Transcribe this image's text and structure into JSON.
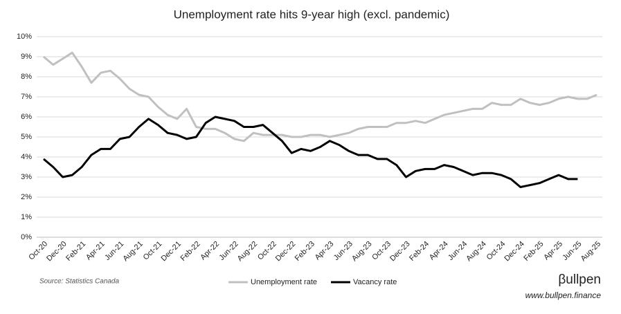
{
  "chart_data": {
    "type": "line",
    "title": "Unemployment rate hits 9-year high (excl. pandemic)",
    "source": "Source: Statistics Canada",
    "brand": "βullpen",
    "website": "www.bullpen.finance",
    "categories": [
      "Oct-20",
      null,
      "Dec-20",
      null,
      "Feb-21",
      null,
      "Apr-21",
      null,
      "Jun-21",
      null,
      "Aug-21",
      null,
      "Oct-21",
      null,
      "Dec-21",
      null,
      "Feb-22",
      null,
      "Apr-22",
      null,
      "Jun-22",
      null,
      "Aug-22",
      null,
      "Oct-22",
      null,
      "Dec-22",
      null,
      "Feb-23",
      null,
      "Apr-23",
      null,
      "Jun-23",
      null,
      "Aug-23",
      null,
      "Oct-23",
      null,
      "Dec-23",
      null,
      "Feb-24",
      null,
      "Apr-24",
      null,
      "Jun-24",
      null,
      "Aug-24",
      null,
      "Oct-24",
      null,
      "Dec-24",
      null,
      "Feb-25",
      null,
      "Apr-25",
      null,
      "Jun-25",
      null,
      "Aug-25"
    ],
    "series": [
      {
        "name": "Unemployment rate",
        "color": "#c0c0c0",
        "values": [
          9.0,
          8.6,
          8.9,
          9.2,
          8.5,
          7.7,
          8.2,
          8.3,
          7.9,
          7.4,
          7.1,
          7.0,
          6.5,
          6.1,
          5.9,
          6.4,
          5.5,
          5.4,
          5.4,
          5.2,
          4.9,
          4.8,
          5.2,
          5.1,
          5.1,
          5.1,
          5.0,
          5.0,
          5.1,
          5.1,
          5.0,
          5.1,
          5.2,
          5.4,
          5.5,
          5.5,
          5.5,
          5.7,
          5.7,
          5.8,
          5.7,
          5.9,
          6.1,
          6.2,
          6.3,
          6.4,
          6.4,
          6.7,
          6.6,
          6.6,
          6.9,
          6.7,
          6.6,
          6.7,
          6.9,
          7.0,
          6.9,
          6.9,
          7.1
        ]
      },
      {
        "name": "Vacancy rate",
        "color": "#000000",
        "values": [
          3.9,
          3.5,
          3.0,
          3.1,
          3.5,
          4.1,
          4.4,
          4.4,
          4.9,
          5.0,
          5.5,
          5.9,
          5.6,
          5.2,
          5.1,
          4.9,
          5.0,
          5.7,
          6.0,
          5.9,
          5.8,
          5.5,
          5.5,
          5.6,
          5.2,
          4.8,
          4.2,
          4.4,
          4.3,
          4.5,
          4.8,
          4.6,
          4.3,
          4.1,
          4.1,
          3.9,
          3.9,
          3.6,
          3.0,
          3.3,
          3.4,
          3.4,
          3.6,
          3.5,
          3.3,
          3.1,
          3.2,
          3.2,
          3.1,
          2.9,
          2.5,
          2.6,
          2.7,
          2.9,
          3.1,
          2.9,
          2.9,
          null,
          null
        ]
      }
    ],
    "ylim": [
      0,
      10
    ],
    "yticks": [
      {
        "value": 0,
        "label": "0%"
      },
      {
        "value": 1,
        "label": "1%"
      },
      {
        "value": 2,
        "label": "2%"
      },
      {
        "value": 3,
        "label": "3%"
      },
      {
        "value": 4,
        "label": "4%"
      },
      {
        "value": 5,
        "label": "5%"
      },
      {
        "value": 6,
        "label": "6%"
      },
      {
        "value": 7,
        "label": "7%"
      },
      {
        "value": 8,
        "label": "8%"
      },
      {
        "value": 9,
        "label": "9%"
      },
      {
        "value": 10,
        "label": "10%"
      }
    ],
    "grid": true
  }
}
